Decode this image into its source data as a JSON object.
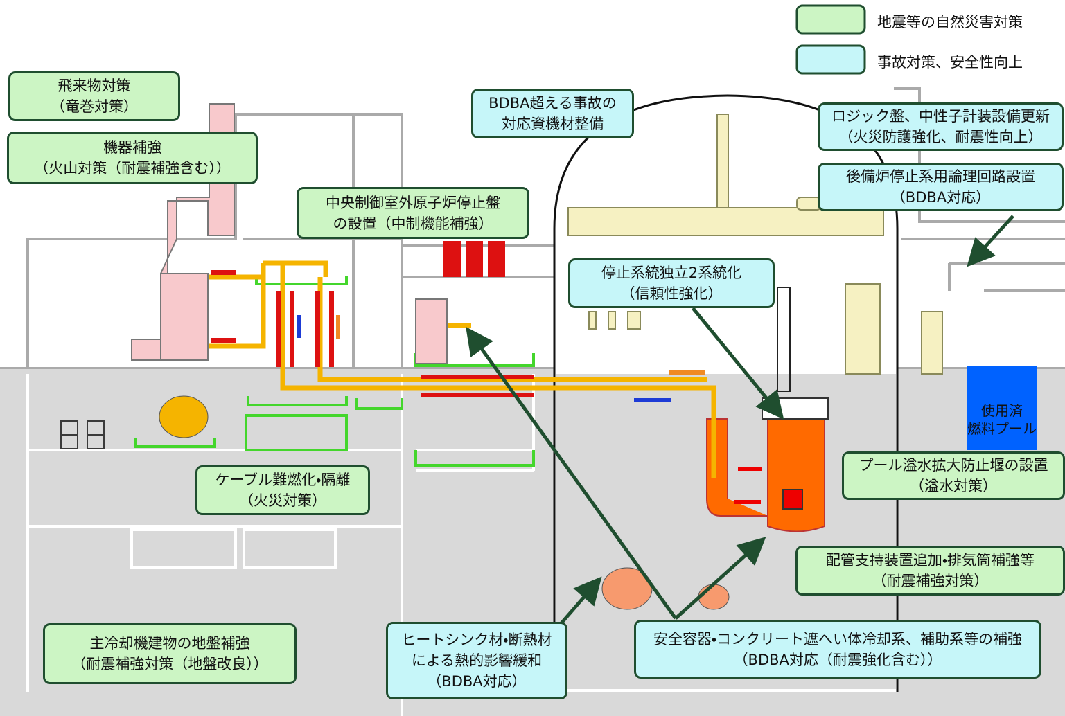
{
  "legend": [
    {
      "label": "地震等の自然災害対策"
    },
    {
      "label": "事故対策、安全性向上"
    }
  ],
  "callouts": [
    {
      "lines": [
        "飛来物対策",
        "（竜巻対策）"
      ]
    },
    {
      "lines": [
        "機器補強",
        "（火山対策（耐震補強含む））"
      ]
    },
    {
      "lines": [
        "中央制御室外原子炉停止盤",
        "の設置（中制機能補強）"
      ]
    },
    {
      "lines": [
        "BDBA超える事故の",
        "対応資機材整備"
      ]
    },
    {
      "lines": [
        "ロジック盤、中性子計装設備更新",
        "（火災防護強化、耐震性向上）"
      ]
    },
    {
      "lines": [
        "後備炉停止系用論理回路設置",
        "（BDBA対応）"
      ]
    },
    {
      "lines": [
        "停止系統独立2系統化",
        "（信頼性強化）"
      ]
    },
    {
      "lines": [
        "ケーブル難燃化・隔離",
        "（火災対策）"
      ]
    },
    {
      "lines": [
        "プール溢水拡大防止堰の設置",
        "（溢水対策）"
      ]
    },
    {
      "lines": [
        "配管支持装置追加・排気筒補強等",
        "（耐震補強対策）"
      ]
    },
    {
      "lines": [
        "主冷却機建物の地盤補強",
        "（耐震補強対策（地盤改良））"
      ]
    },
    {
      "lines": [
        "ヒートシンク材・断熱材",
        "による熱的影響緩和",
        "（BDBA対応）"
      ]
    },
    {
      "lines": [
        "安全容器・コンクリート遮へい体冷却系、補助系等の補強",
        "（BDBA対応（耐震強化含む））"
      ]
    }
  ],
  "pool_label": [
    "使用済",
    "燃料プール"
  ]
}
